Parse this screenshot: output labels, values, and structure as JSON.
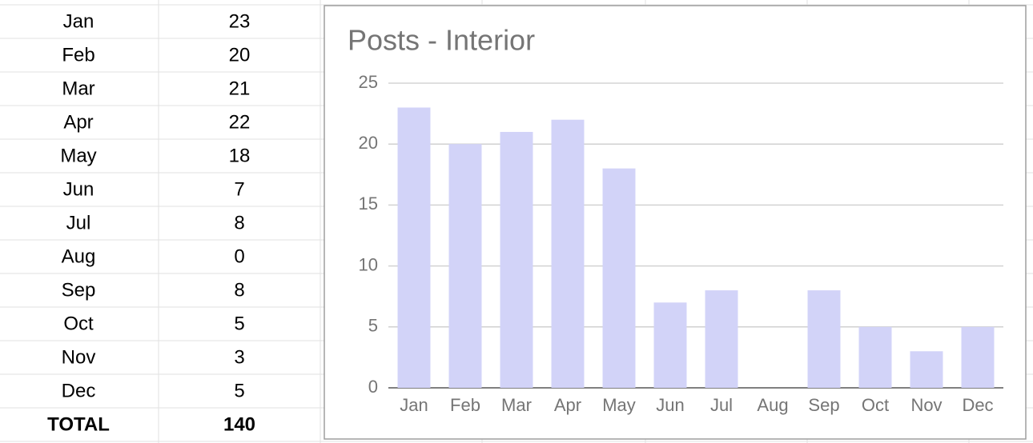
{
  "table": {
    "rows": [
      [
        "Jan",
        23
      ],
      [
        "Feb",
        20
      ],
      [
        "Mar",
        21
      ],
      [
        "Apr",
        22
      ],
      [
        "May",
        18
      ],
      [
        "Jun",
        7
      ],
      [
        "Jul",
        8
      ],
      [
        "Aug",
        0
      ],
      [
        "Sep",
        8
      ],
      [
        "Oct",
        5
      ],
      [
        "Nov",
        3
      ],
      [
        "Dec",
        5
      ]
    ],
    "total": [
      "TOTAL",
      140
    ]
  },
  "chart_data": {
    "type": "bar",
    "title": "Posts - Interior",
    "categories": [
      "Jan",
      "Feb",
      "Mar",
      "Apr",
      "May",
      "Jun",
      "Jul",
      "Aug",
      "Sep",
      "Oct",
      "Nov",
      "Dec"
    ],
    "values": [
      23,
      20,
      21,
      22,
      18,
      7,
      8,
      0,
      8,
      5,
      3,
      5
    ],
    "color": "#d2d3f8",
    "ylim": [
      0,
      25
    ],
    "yticks": [
      0,
      5,
      10,
      15,
      20,
      25
    ],
    "grid": true
  }
}
